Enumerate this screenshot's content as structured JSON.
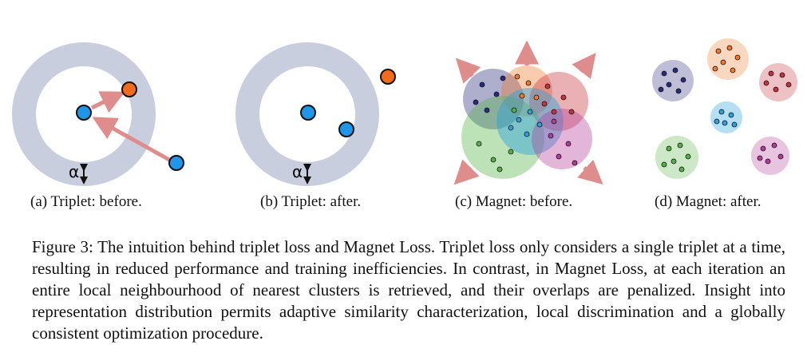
{
  "figure": {
    "panels": [
      {
        "id": "a",
        "label": "(a) Triplet: before."
      },
      {
        "id": "b",
        "label": "(b) Triplet: after."
      },
      {
        "id": "c",
        "label": "(c) Magnet: before."
      },
      {
        "id": "d",
        "label": "(d) Magnet: after."
      }
    ],
    "margin_symbol": "α",
    "colors": {
      "ring": "#c9cedf",
      "anchor": "#1f96e8",
      "negative": "#f26a1b",
      "arrow": "#df8c8c",
      "clusters": {
        "navy": "#272c7c",
        "orange": "#f07a2a",
        "red": "#c8323c",
        "cyan": "#2aa2dc",
        "green": "#55b344",
        "magenta": "#b23c9c"
      }
    }
  },
  "caption": {
    "text": "Figure 3: The intuition behind triplet loss and Magnet Loss. Triplet loss only considers a single triplet at a time, resulting in reduced performance and training inefficiencies. In contrast, in Magnet Loss, at each iteration an entire local neighbourhood of nearest clusters is retrieved, and their overlaps are penalized. Insight into representation distribution permits adaptive similarity characterization, local discrimination and a globally consistent optimization procedure."
  }
}
